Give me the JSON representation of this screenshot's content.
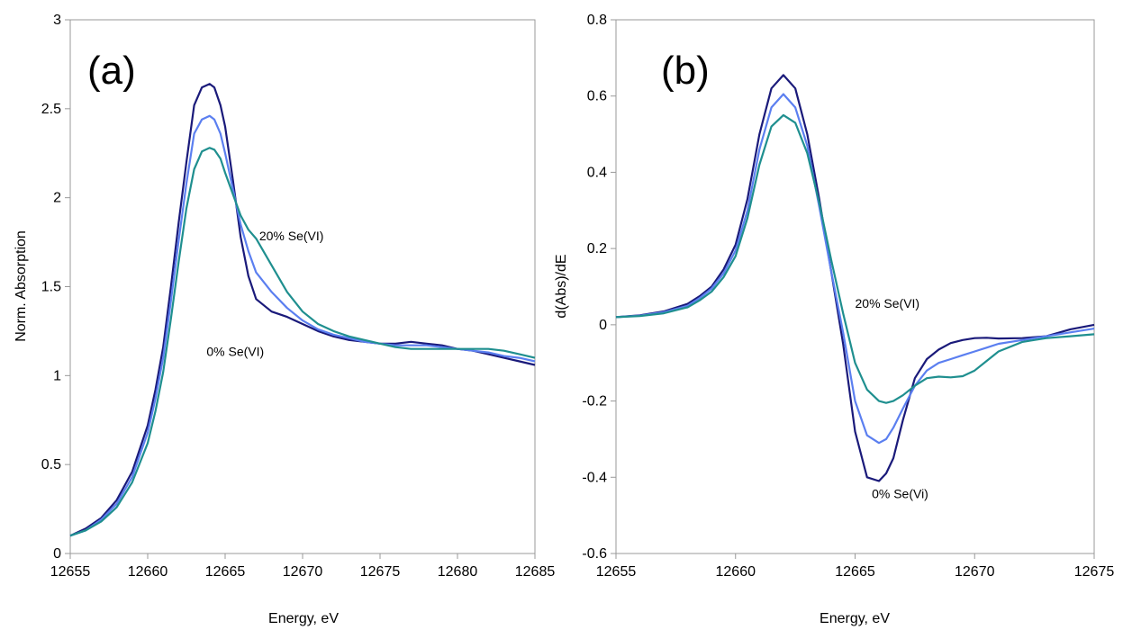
{
  "chart_data": [
    {
      "type": "line",
      "panel_label": "(a)",
      "xlabel": "Energy, eV",
      "ylabel": "Norm. Absorption",
      "xlim": [
        12655,
        12685
      ],
      "ylim": [
        0,
        3
      ],
      "xticks": [
        "12655",
        "12660",
        "12665",
        "12670",
        "12675",
        "12680",
        "12685"
      ],
      "yticks": [
        "0",
        "0.5",
        "1",
        "1.5",
        "2",
        "2.5",
        "3"
      ],
      "grid": false,
      "legend": "none",
      "annotations": [
        {
          "text": "20% Se(VI)",
          "x": 12667.2,
          "y": 1.76
        },
        {
          "text": "0% Se(VI)",
          "x": 12663.8,
          "y": 1.11
        }
      ],
      "series": [
        {
          "color": "#1a1a7a",
          "x": [
            12655,
            12656,
            12657,
            12658,
            12659,
            12660,
            12660.5,
            12661,
            12661.5,
            12662,
            12662.5,
            12663,
            12663.5,
            12664,
            12664.3,
            12664.7,
            12665,
            12665.5,
            12666,
            12666.5,
            12667,
            12668,
            12669,
            12670,
            12671,
            12672,
            12673,
            12674,
            12675,
            12676,
            12677,
            12678,
            12679,
            12680,
            12681,
            12682,
            12683,
            12684,
            12685
          ],
          "values": [
            0.1,
            0.14,
            0.2,
            0.3,
            0.46,
            0.72,
            0.92,
            1.16,
            1.5,
            1.86,
            2.2,
            2.52,
            2.62,
            2.64,
            2.62,
            2.52,
            2.4,
            2.1,
            1.78,
            1.56,
            1.43,
            1.36,
            1.33,
            1.29,
            1.25,
            1.22,
            1.2,
            1.19,
            1.18,
            1.18,
            1.19,
            1.18,
            1.17,
            1.15,
            1.14,
            1.12,
            1.1,
            1.08,
            1.06
          ]
        },
        {
          "color": "#5b7ff0",
          "x": [
            12655,
            12656,
            12657,
            12658,
            12659,
            12660,
            12660.5,
            12661,
            12661.5,
            12662,
            12662.5,
            12663,
            12663.5,
            12664,
            12664.3,
            12664.7,
            12665,
            12665.5,
            12666,
            12666.5,
            12667,
            12668,
            12669,
            12670,
            12671,
            12672,
            12673,
            12674,
            12675,
            12676,
            12677,
            12678,
            12679,
            12680,
            12681,
            12682,
            12683,
            12684,
            12685
          ],
          "values": [
            0.1,
            0.13,
            0.19,
            0.28,
            0.43,
            0.68,
            0.87,
            1.1,
            1.42,
            1.76,
            2.08,
            2.36,
            2.44,
            2.46,
            2.44,
            2.36,
            2.25,
            2.05,
            1.85,
            1.7,
            1.58,
            1.47,
            1.38,
            1.31,
            1.26,
            1.23,
            1.21,
            1.19,
            1.18,
            1.17,
            1.17,
            1.17,
            1.16,
            1.15,
            1.14,
            1.13,
            1.11,
            1.1,
            1.08
          ]
        },
        {
          "color": "#1f8f8f",
          "x": [
            12655,
            12656,
            12657,
            12658,
            12659,
            12660,
            12660.5,
            12661,
            12661.5,
            12662,
            12662.5,
            12663,
            12663.5,
            12664,
            12664.3,
            12664.7,
            12665,
            12665.5,
            12666,
            12666.5,
            12667,
            12668,
            12669,
            12670,
            12671,
            12672,
            12673,
            12674,
            12675,
            12676,
            12677,
            12678,
            12679,
            12680,
            12681,
            12682,
            12683,
            12684,
            12685
          ],
          "values": [
            0.1,
            0.13,
            0.18,
            0.26,
            0.4,
            0.62,
            0.8,
            1.02,
            1.32,
            1.64,
            1.94,
            2.16,
            2.26,
            2.28,
            2.27,
            2.22,
            2.14,
            2.02,
            1.9,
            1.82,
            1.77,
            1.62,
            1.47,
            1.36,
            1.29,
            1.25,
            1.22,
            1.2,
            1.18,
            1.16,
            1.15,
            1.15,
            1.15,
            1.15,
            1.15,
            1.15,
            1.14,
            1.12,
            1.1
          ]
        }
      ]
    },
    {
      "type": "line",
      "panel_label": "(b)",
      "xlabel": "Energy, eV",
      "ylabel": "d(Abs)/dE",
      "xlim": [
        12655,
        12675
      ],
      "ylim": [
        -0.6,
        0.8
      ],
      "xticks": [
        "12655",
        "12660",
        "12665",
        "12670",
        "12675"
      ],
      "yticks": [
        "-0.6",
        "-0.4",
        "-0.2",
        "0",
        "0.2",
        "0.4",
        "0.6",
        "0.8"
      ],
      "grid": false,
      "legend": "none",
      "annotations": [
        {
          "text": "20% Se(VI)",
          "x": 12665,
          "y": 0.045
        },
        {
          "text": "0% Se(Vi)",
          "x": 12665.7,
          "y": -0.455
        }
      ],
      "series": [
        {
          "color": "#1a1a7a",
          "x": [
            12655,
            12656,
            12657,
            12658,
            12658.5,
            12659,
            12659.5,
            12660,
            12660.5,
            12661,
            12661.5,
            12662,
            12662.5,
            12663,
            12663.5,
            12664,
            12664.5,
            12665,
            12665.5,
            12666,
            12666.3,
            12666.6,
            12667,
            12667.5,
            12668,
            12668.5,
            12669,
            12669.5,
            12670,
            12670.5,
            12671,
            12672,
            12673,
            12674,
            12675
          ],
          "values": [
            0.02,
            0.025,
            0.035,
            0.055,
            0.075,
            0.1,
            0.145,
            0.21,
            0.33,
            0.5,
            0.62,
            0.655,
            0.62,
            0.5,
            0.33,
            0.14,
            -0.05,
            -0.28,
            -0.4,
            -0.41,
            -0.39,
            -0.35,
            -0.25,
            -0.14,
            -0.09,
            -0.065,
            -0.048,
            -0.04,
            -0.035,
            -0.034,
            -0.036,
            -0.035,
            -0.03,
            -0.012,
            0
          ]
        },
        {
          "color": "#5b7ff0",
          "x": [
            12655,
            12656,
            12657,
            12658,
            12658.5,
            12659,
            12659.5,
            12660,
            12660.5,
            12661,
            12661.5,
            12662,
            12662.5,
            12663,
            12663.5,
            12664,
            12664.5,
            12665,
            12665.5,
            12666,
            12666.3,
            12666.6,
            12667,
            12667.5,
            12668,
            12668.5,
            12669,
            12669.5,
            12670,
            12670.5,
            12671,
            12672,
            12673,
            12674,
            12675
          ],
          "values": [
            0.02,
            0.024,
            0.033,
            0.05,
            0.07,
            0.095,
            0.135,
            0.195,
            0.3,
            0.46,
            0.57,
            0.605,
            0.57,
            0.47,
            0.31,
            0.14,
            -0.02,
            -0.2,
            -0.29,
            -0.31,
            -0.3,
            -0.27,
            -0.22,
            -0.16,
            -0.12,
            -0.1,
            -0.09,
            -0.08,
            -0.07,
            -0.06,
            -0.05,
            -0.04,
            -0.03,
            -0.02,
            -0.01
          ]
        },
        {
          "color": "#1f8f8f",
          "x": [
            12655,
            12656,
            12657,
            12658,
            12658.5,
            12659,
            12659.5,
            12660,
            12660.5,
            12661,
            12661.5,
            12662,
            12662.5,
            12663,
            12663.5,
            12664,
            12664.5,
            12665,
            12665.5,
            12666,
            12666.3,
            12666.6,
            12667,
            12667.5,
            12668,
            12668.5,
            12669,
            12669.5,
            12670,
            12670.5,
            12671,
            12672,
            12673,
            12674,
            12675
          ],
          "values": [
            0.02,
            0.023,
            0.03,
            0.046,
            0.064,
            0.087,
            0.125,
            0.18,
            0.28,
            0.42,
            0.52,
            0.55,
            0.53,
            0.45,
            0.32,
            0.17,
            0.03,
            -0.1,
            -0.17,
            -0.2,
            -0.205,
            -0.2,
            -0.185,
            -0.16,
            -0.14,
            -0.136,
            -0.138,
            -0.135,
            -0.12,
            -0.095,
            -0.07,
            -0.045,
            -0.035,
            -0.03,
            -0.025
          ]
        }
      ]
    }
  ]
}
